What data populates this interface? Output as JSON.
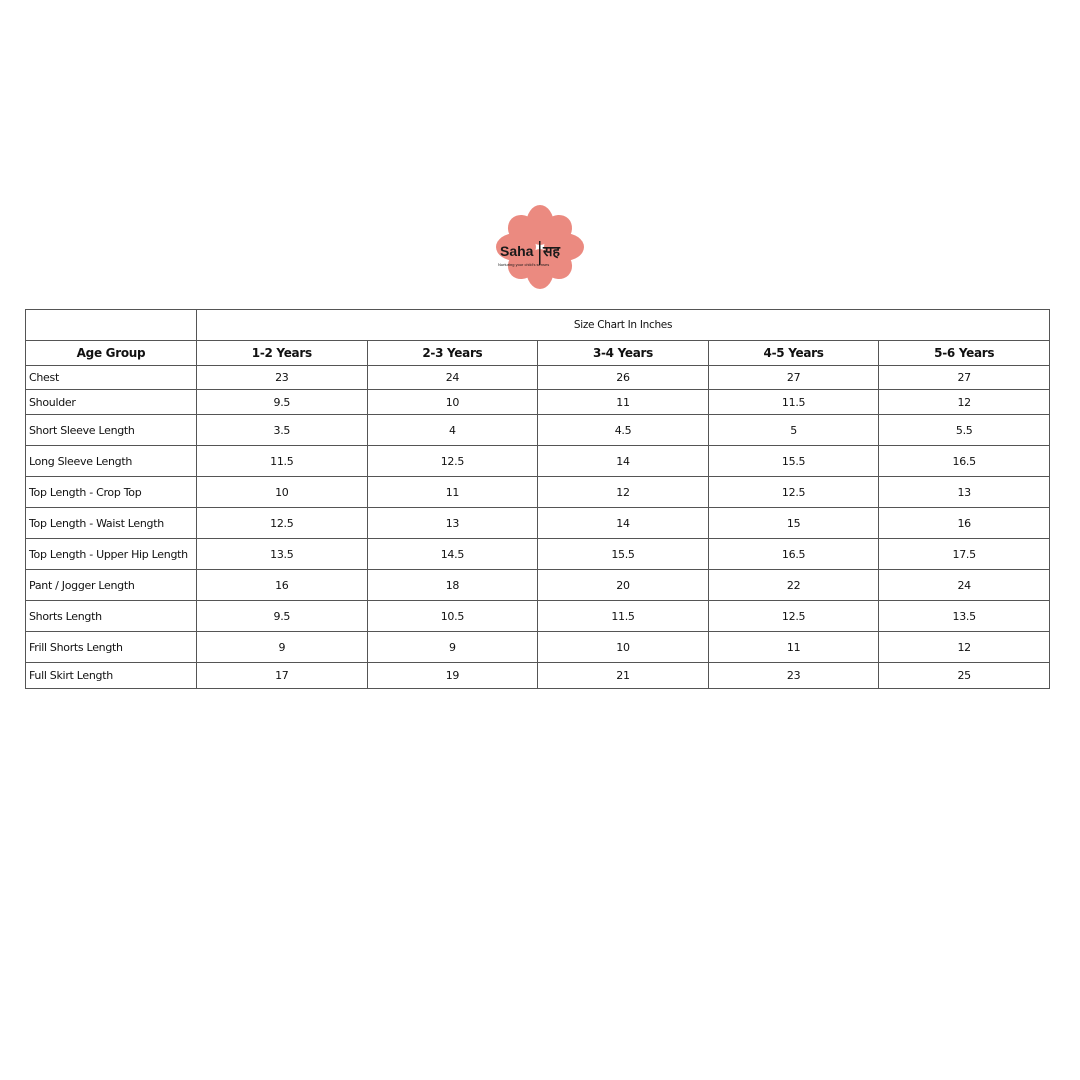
{
  "logo": {
    "brand": "Saha",
    "brand_hindi": "सह",
    "tagline": "Nurturing your child's senses",
    "color": "#e8766a"
  },
  "table": {
    "title": "Size Chart In Inches",
    "header_label": "Age Group",
    "columns": [
      "1-2 Years",
      "2-3 Years",
      "3-4 Years",
      "4-5 Years",
      "5-6 Years"
    ],
    "rows": [
      {
        "label": "Chest",
        "values": [
          "23",
          "24",
          "26",
          "27",
          "27"
        ]
      },
      {
        "label": "Shoulder",
        "values": [
          "9.5",
          "10",
          "11",
          "11.5",
          "12"
        ]
      },
      {
        "label": "Short Sleeve Length",
        "values": [
          "3.5",
          "4",
          "4.5",
          "5",
          "5.5"
        ]
      },
      {
        "label": "Long Sleeve Length",
        "values": [
          "11.5",
          "12.5",
          "14",
          "15.5",
          "16.5"
        ]
      },
      {
        "label": "Top Length - Crop Top",
        "values": [
          "10",
          "11",
          "12",
          "12.5",
          "13"
        ]
      },
      {
        "label": "Top Length - Waist Length",
        "values": [
          "12.5",
          "13",
          "14",
          "15",
          "16"
        ]
      },
      {
        "label": "Top Length - Upper Hip Length",
        "values": [
          "13.5",
          "14.5",
          "15.5",
          "16.5",
          "17.5"
        ]
      },
      {
        "label": "Pant / Jogger Length",
        "values": [
          "16",
          "18",
          "20",
          "22",
          "24"
        ]
      },
      {
        "label": "Shorts Length",
        "values": [
          "9.5",
          "10.5",
          "11.5",
          "12.5",
          "13.5"
        ]
      },
      {
        "label": "Frill Shorts Length",
        "values": [
          "9",
          "9",
          "10",
          "11",
          "12"
        ]
      },
      {
        "label": "Full Skirt Length",
        "values": [
          "17",
          "19",
          "21",
          "23",
          "25"
        ]
      }
    ]
  }
}
